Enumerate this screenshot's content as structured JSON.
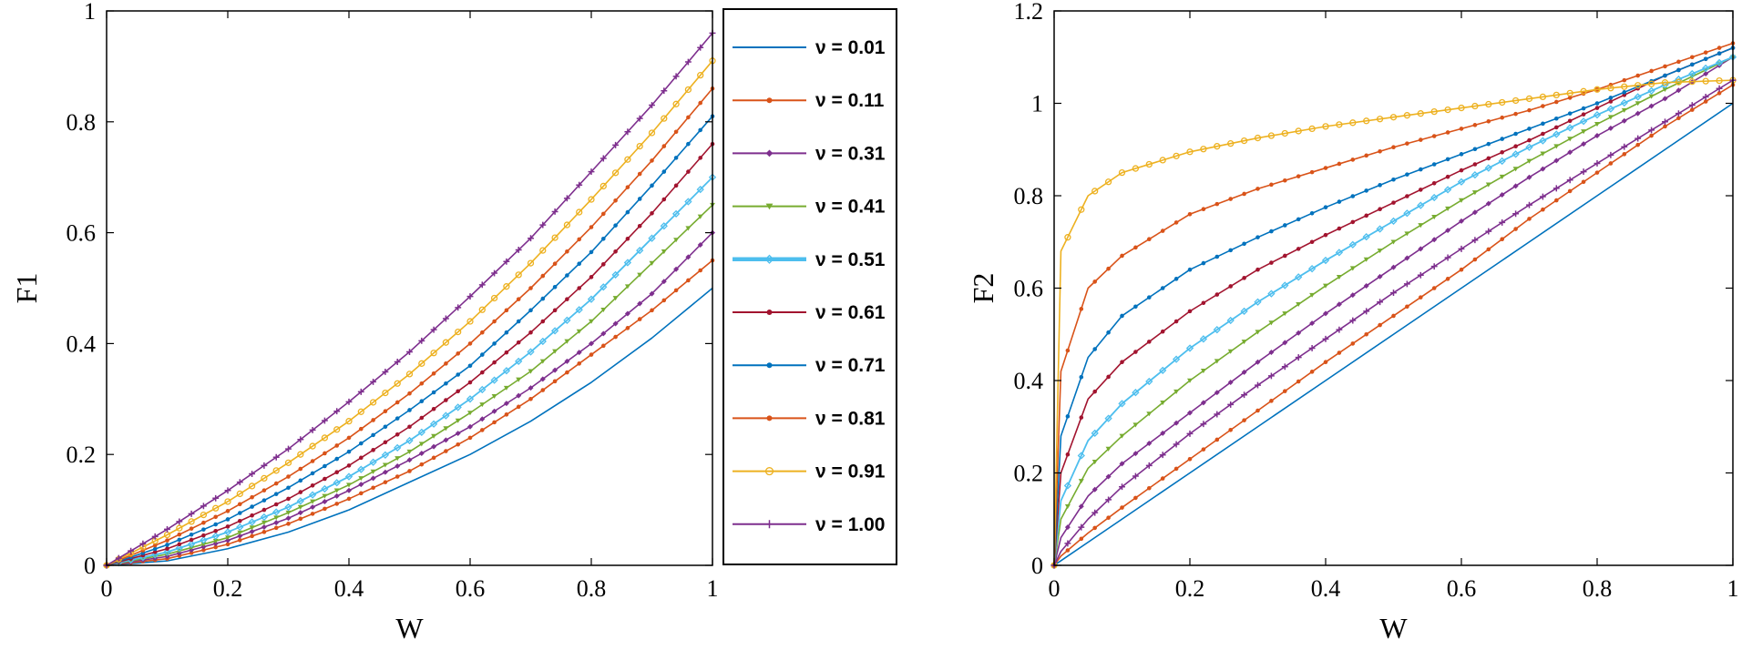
{
  "chart_data": [
    {
      "type": "line",
      "ylabel": "F1",
      "xlabel": "W",
      "xlim": [
        0,
        1
      ],
      "ylim": [
        0,
        1
      ],
      "xticks": [
        0,
        0.2,
        0.4,
        0.6,
        0.8,
        1
      ],
      "xtick_labels": [
        "0",
        "0.2",
        "0.4",
        "0.6",
        "0.8",
        "1"
      ],
      "yticks": [
        0,
        0.2,
        0.4,
        0.6,
        0.8,
        1
      ],
      "ytick_labels": [
        "0",
        "0.2",
        "0.4",
        "0.6",
        "0.8",
        "1"
      ],
      "x": [
        0,
        0.1,
        0.2,
        0.3,
        0.4,
        0.5,
        0.6,
        0.7,
        0.8,
        0.9,
        1.0
      ],
      "series": [
        {
          "name": "ν = 0.01",
          "values": [
            0,
            0.008,
            0.03,
            0.06,
            0.1,
            0.15,
            0.2,
            0.26,
            0.33,
            0.41,
            0.5
          ]
        },
        {
          "name": "ν = 0.11",
          "values": [
            0,
            0.012,
            0.038,
            0.075,
            0.12,
            0.17,
            0.23,
            0.3,
            0.38,
            0.46,
            0.55
          ]
        },
        {
          "name": "ν = 0.31",
          "values": [
            0,
            0.016,
            0.045,
            0.085,
            0.135,
            0.19,
            0.25,
            0.32,
            0.4,
            0.49,
            0.6
          ]
        },
        {
          "name": "ν = 0.41",
          "values": [
            0,
            0.02,
            0.05,
            0.095,
            0.145,
            0.205,
            0.275,
            0.35,
            0.44,
            0.545,
            0.65
          ]
        },
        {
          "name": "ν = 0.51",
          "values": [
            0,
            0.024,
            0.06,
            0.105,
            0.16,
            0.225,
            0.3,
            0.385,
            0.48,
            0.59,
            0.7
          ]
        },
        {
          "name": "ν = 0.61",
          "values": [
            0,
            0.03,
            0.07,
            0.12,
            0.18,
            0.25,
            0.33,
            0.42,
            0.52,
            0.635,
            0.76
          ]
        },
        {
          "name": "ν = 0.71",
          "values": [
            0,
            0.037,
            0.083,
            0.14,
            0.205,
            0.28,
            0.36,
            0.46,
            0.565,
            0.685,
            0.81
          ]
        },
        {
          "name": "ν = 0.81",
          "values": [
            0,
            0.045,
            0.098,
            0.16,
            0.23,
            0.31,
            0.4,
            0.5,
            0.61,
            0.73,
            0.86
          ]
        },
        {
          "name": "ν = 0.91",
          "values": [
            0,
            0.055,
            0.115,
            0.185,
            0.26,
            0.345,
            0.44,
            0.545,
            0.66,
            0.78,
            0.91
          ]
        },
        {
          "name": "ν = 1.00",
          "values": [
            0,
            0.065,
            0.135,
            0.21,
            0.295,
            0.385,
            0.485,
            0.59,
            0.71,
            0.83,
            0.96
          ]
        }
      ]
    },
    {
      "type": "line",
      "ylabel": "F2",
      "xlabel": "W",
      "xlim": [
        0,
        1
      ],
      "ylim": [
        0,
        1.2
      ],
      "xticks": [
        0,
        0.2,
        0.4,
        0.6,
        0.8,
        1
      ],
      "xtick_labels": [
        "0",
        "0.2",
        "0.4",
        "0.6",
        "0.8",
        "1"
      ],
      "yticks": [
        0,
        0.2,
        0.4,
        0.6,
        0.8,
        1,
        1.2
      ],
      "ytick_labels": [
        "0",
        "0.2",
        "0.4",
        "0.6",
        "0.8",
        "1",
        "1.2"
      ],
      "x": [
        0,
        0.01,
        0.05,
        0.1,
        0.2,
        0.3,
        0.4,
        0.5,
        0.6,
        0.7,
        0.8,
        0.9,
        1.0
      ],
      "series": [
        {
          "name": "ν = 0.01",
          "values": [
            0,
            0.01,
            0.05,
            0.1,
            0.2,
            0.3,
            0.4,
            0.5,
            0.6,
            0.7,
            0.8,
            0.9,
            1.0
          ]
        },
        {
          "name": "ν = 0.11",
          "values": [
            0,
            0.02,
            0.07,
            0.125,
            0.23,
            0.335,
            0.44,
            0.54,
            0.64,
            0.75,
            0.85,
            0.95,
            1.04
          ]
        },
        {
          "name": "ν = 0.31",
          "values": [
            0,
            0.06,
            0.15,
            0.22,
            0.33,
            0.44,
            0.545,
            0.645,
            0.745,
            0.84,
            0.93,
            1.01,
            1.1
          ]
        },
        {
          "name": "ν = 0.41",
          "values": [
            0,
            0.1,
            0.21,
            0.28,
            0.4,
            0.505,
            0.605,
            0.7,
            0.79,
            0.875,
            0.955,
            1.03,
            1.1
          ]
        },
        {
          "name": "ν = 0.51",
          "values": [
            0,
            0.14,
            0.27,
            0.35,
            0.47,
            0.57,
            0.66,
            0.745,
            0.83,
            0.905,
            0.975,
            1.04,
            1.1
          ]
        },
        {
          "name": "ν = 0.61",
          "values": [
            0,
            0.2,
            0.36,
            0.44,
            0.55,
            0.64,
            0.715,
            0.785,
            0.855,
            0.92,
            0.99,
            1.06,
            1.12
          ]
        },
        {
          "name": "ν = 0.71",
          "values": [
            0,
            0.28,
            0.45,
            0.54,
            0.64,
            0.71,
            0.775,
            0.835,
            0.89,
            0.945,
            1.0,
            1.06,
            1.12
          ]
        },
        {
          "name": "ν = 0.81",
          "values": [
            0,
            0.42,
            0.6,
            0.67,
            0.76,
            0.815,
            0.86,
            0.905,
            0.945,
            0.985,
            1.03,
            1.08,
            1.13
          ]
        },
        {
          "name": "ν = 0.91",
          "values": [
            0,
            0.68,
            0.8,
            0.85,
            0.895,
            0.925,
            0.95,
            0.97,
            0.99,
            1.01,
            1.03,
            1.045,
            1.05
          ]
        },
        {
          "name": "ν = 1.00",
          "values": [
            0,
            0.03,
            0.1,
            0.17,
            0.285,
            0.39,
            0.49,
            0.59,
            0.685,
            0.78,
            0.87,
            0.96,
            1.05
          ]
        }
      ]
    }
  ],
  "legend": {
    "position": "right of left chart",
    "entries": [
      {
        "label": "ν = 0.01",
        "color": "#0072BD",
        "marker": "none"
      },
      {
        "label": "ν = 0.11",
        "color": "#D95319",
        "marker": "dot"
      },
      {
        "label": "ν = 0.31",
        "color": "#7E2F8E",
        "marker": "diamond"
      },
      {
        "label": "ν = 0.41",
        "color": "#77AC30",
        "marker": "triangle-down"
      },
      {
        "label": "ν = 0.51",
        "color": "#4DBEEE",
        "marker": "diamond-open"
      },
      {
        "label": "ν = 0.61",
        "color": "#A2142F",
        "marker": "dot"
      },
      {
        "label": "ν = 0.71",
        "color": "#0072BD",
        "marker": "dot"
      },
      {
        "label": "ν = 0.81",
        "color": "#D95319",
        "marker": "dot"
      },
      {
        "label": "ν = 0.91",
        "color": "#EDB120",
        "marker": "circle-open"
      },
      {
        "label": "ν = 1.00",
        "color": "#7E2F8E",
        "marker": "plus"
      }
    ]
  }
}
